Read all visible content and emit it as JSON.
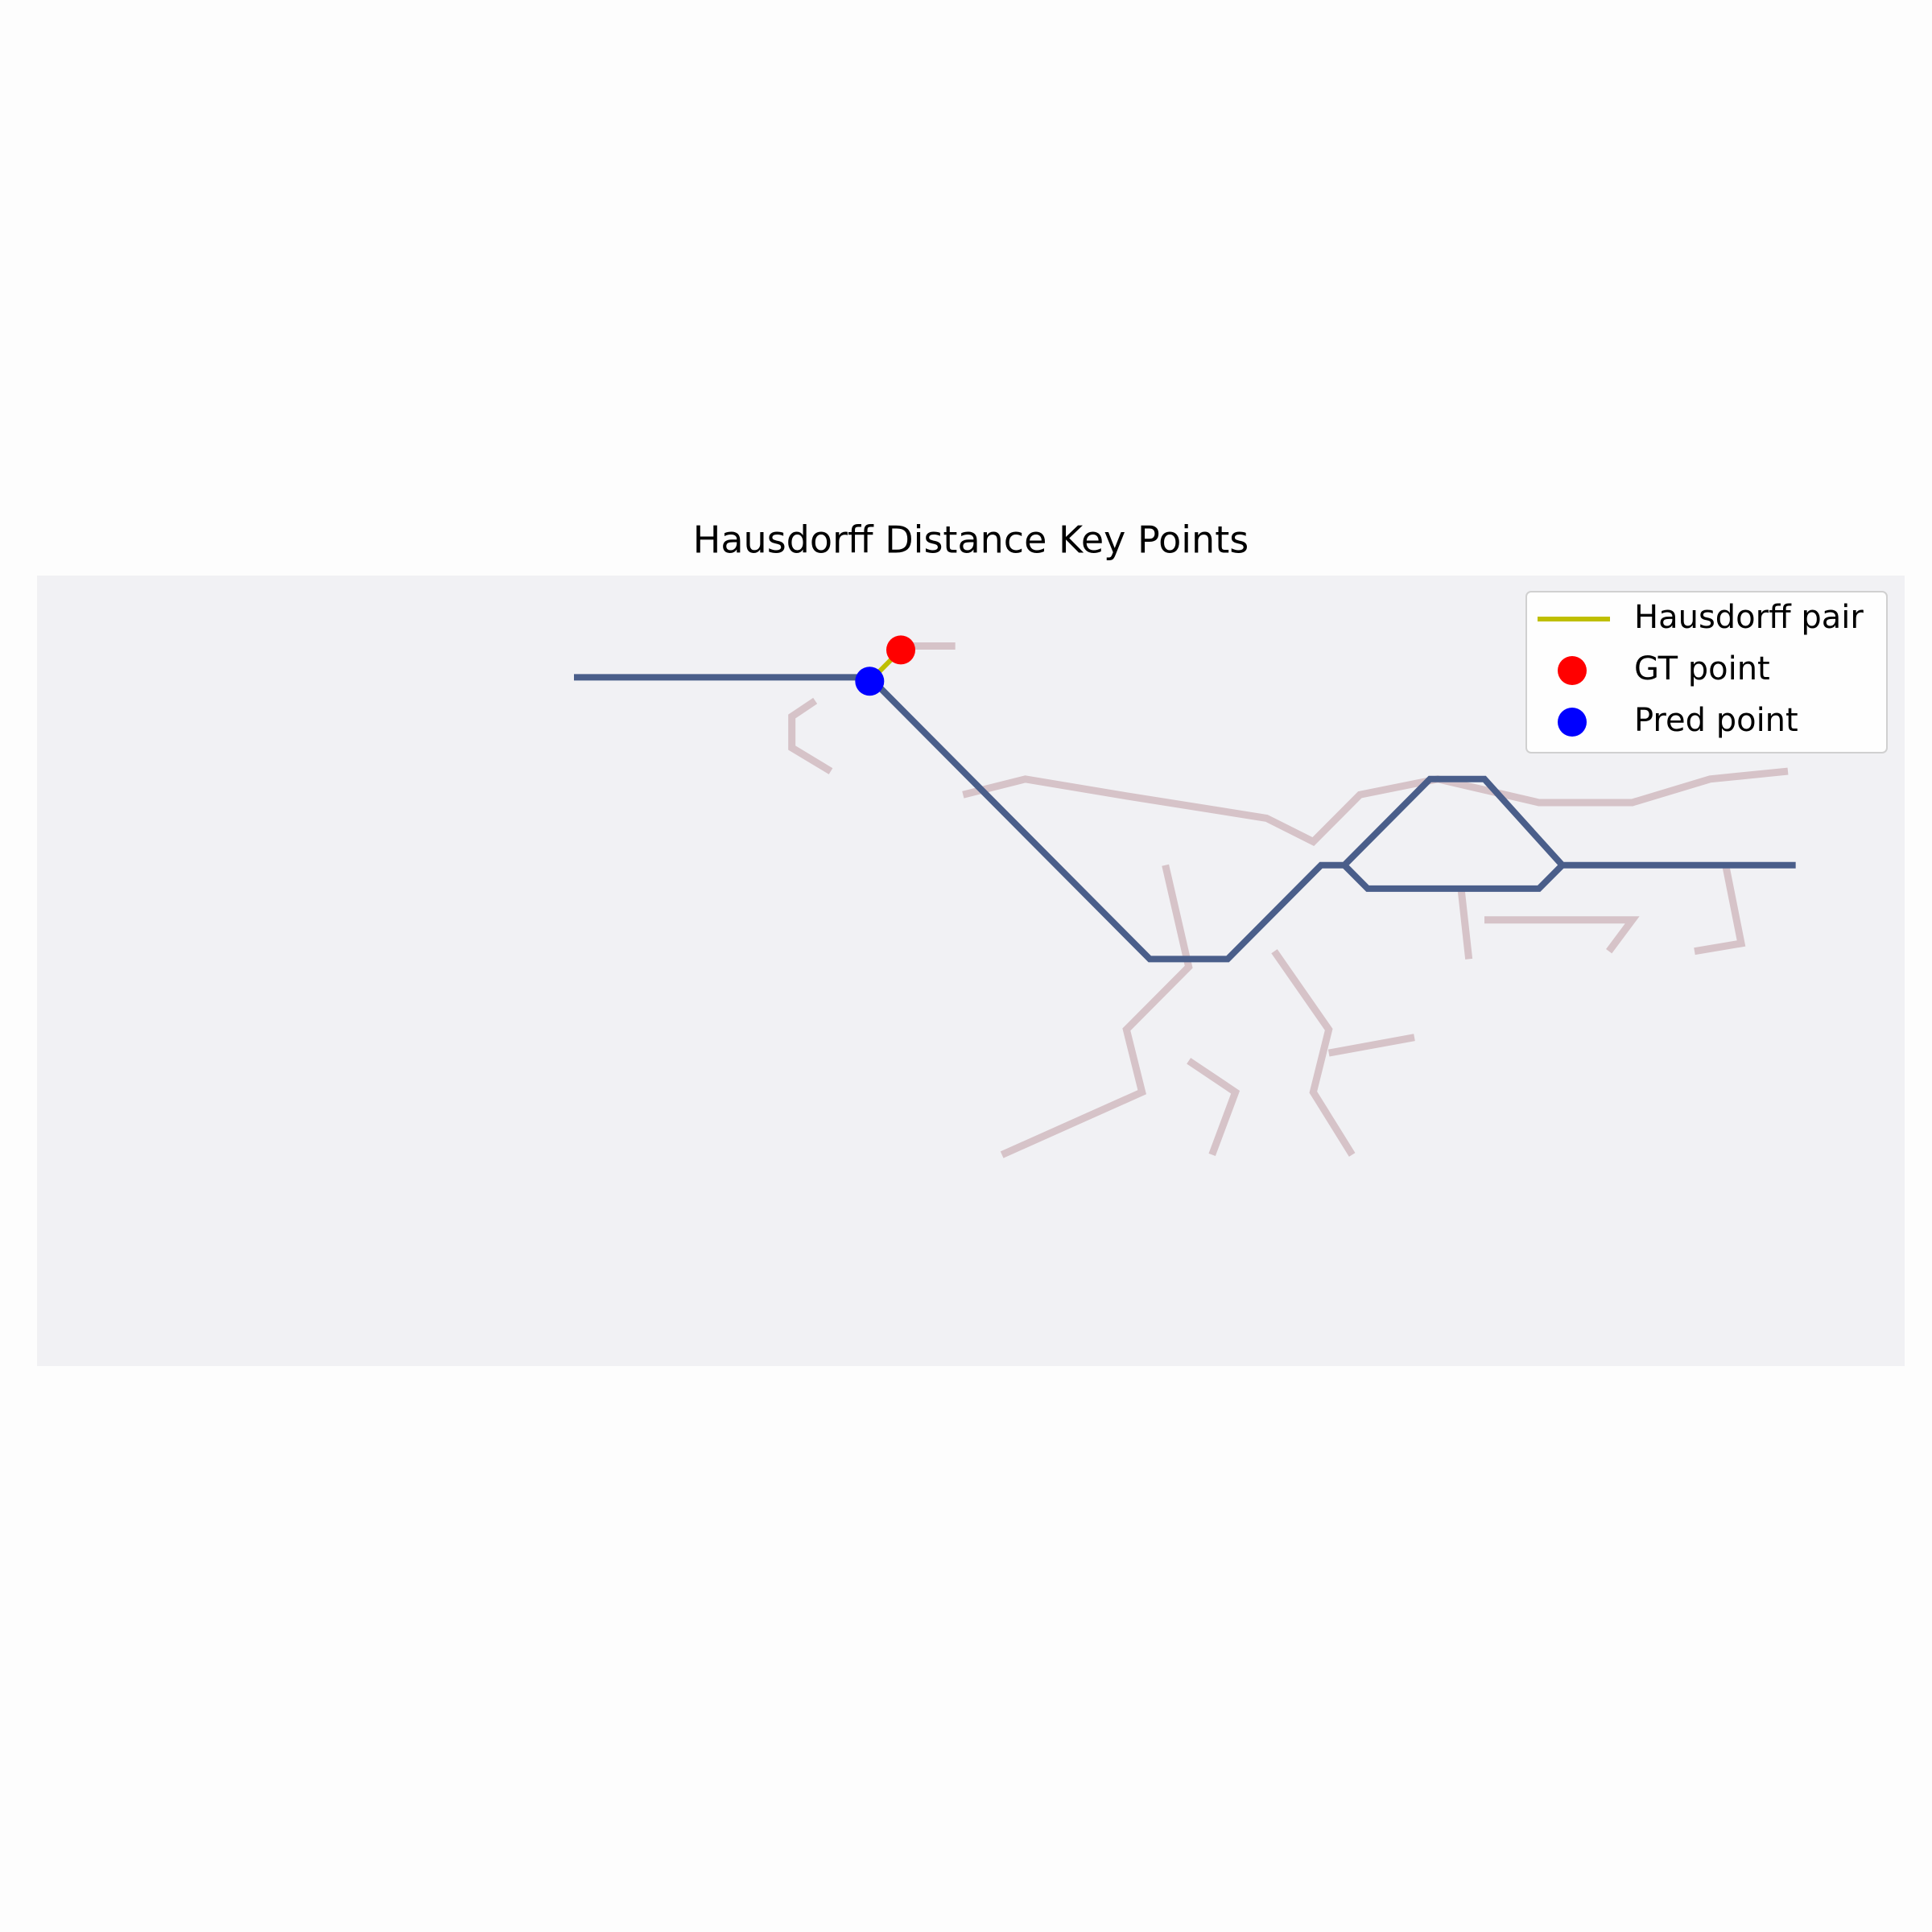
{
  "chart_data": {
    "type": "scatter",
    "title": "Hausdorff Distance Key Points",
    "xlim": [
      0,
      240
    ],
    "ylim": [
      101,
      0
    ],
    "background": "#f1f1f4",
    "legend": "upper right",
    "gt_color": "#d6c3c8",
    "gt_skeleton": [
      {
        "x": [
          100,
          97,
          97,
          102
        ],
        "y": [
          16,
          18,
          22,
          25
        ]
      },
      {
        "x": [
          111,
          118
        ],
        "y": [
          9,
          9
        ]
      },
      {
        "x": [
          119,
          127,
          139,
          158,
          164,
          170,
          180,
          193,
          205,
          215,
          225
        ],
        "y": [
          28,
          26,
          28,
          31,
          34,
          28,
          26,
          29,
          29,
          26,
          25
        ]
      },
      {
        "x": [
          145,
          148,
          140,
          142,
          124
        ],
        "y": [
          37,
          50,
          58,
          66,
          74
        ]
      },
      {
        "x": [
          148,
          154,
          151
        ],
        "y": [
          62,
          66,
          74
        ]
      },
      {
        "x": [
          159,
          166,
          164,
          169
        ],
        "y": [
          48,
          58,
          66,
          74
        ]
      },
      {
        "x": [
          166,
          177
        ],
        "y": [
          61,
          59
        ]
      },
      {
        "x": [
          183,
          184
        ],
        "y": [
          40,
          49
        ]
      },
      {
        "x": [
          186,
          205,
          202
        ],
        "y": [
          44,
          44,
          48
        ]
      },
      {
        "x": [
          217,
          219,
          213
        ],
        "y": [
          37,
          47,
          48
        ]
      }
    ],
    "pred_color": "#4a5e8a",
    "pred_skeleton": [
      {
        "x": [
          69,
          107,
          143,
          153,
          165,
          168,
          179,
          186,
          196,
          226
        ],
        "y": [
          13,
          13,
          49,
          49,
          37,
          37,
          26,
          26,
          37,
          37
        ]
      },
      {
        "x": [
          168,
          171,
          193,
          196
        ],
        "y": [
          37,
          40,
          40,
          37
        ]
      }
    ],
    "series": [
      {
        "name": "Hausdorff pair",
        "style": "line",
        "color": "#bfbf00",
        "x": [
          111,
          107
        ],
        "y": [
          9.5,
          13.5
        ]
      },
      {
        "name": "GT point",
        "style": "point",
        "color": "#ff0000",
        "x": [
          111
        ],
        "y": [
          9.5
        ]
      },
      {
        "name": "Pred point",
        "style": "point",
        "color": "#0000ff",
        "x": [
          107
        ],
        "y": [
          13.5
        ]
      }
    ]
  }
}
